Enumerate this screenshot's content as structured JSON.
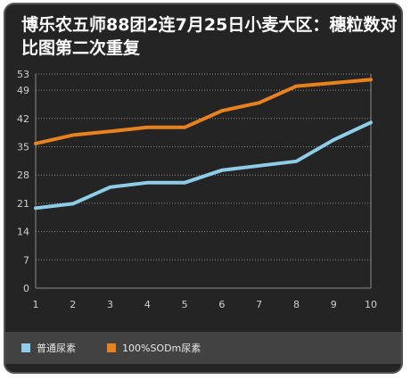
{
  "chart_data": {
    "type": "line",
    "title": "博乐农五师88团2连7月25日小麦大区：穗粒数对比图第二次重复",
    "x": [
      1,
      2,
      3,
      4,
      5,
      6,
      7,
      8,
      9,
      10
    ],
    "x_tick_labels": [
      "1",
      "2",
      "3",
      "4",
      "5",
      "6",
      "7",
      "8",
      "9",
      "10"
    ],
    "y_tick_values": [
      0,
      7,
      14,
      21,
      28,
      35,
      42,
      49,
      53
    ],
    "y_tick_labels": [
      "0",
      "7",
      "14",
      "21",
      "28",
      "35",
      "42",
      "49",
      "53"
    ],
    "ylim": [
      0,
      53
    ],
    "grid": "horizontal dotted",
    "legend_position": "bottom",
    "series": [
      {
        "name": "普通尿素",
        "color": "#8dcde8",
        "values": [
          19.8,
          20.9,
          25,
          26.1,
          26.1,
          29.2,
          30.3,
          31.4,
          36.7,
          41
        ]
      },
      {
        "name": "100%SODm尿素",
        "color": "#e8821e",
        "values": [
          35.8,
          37.9,
          38.8,
          39.8,
          39.8,
          43.9,
          45.9,
          50,
          50.8,
          51.6
        ]
      }
    ]
  }
}
